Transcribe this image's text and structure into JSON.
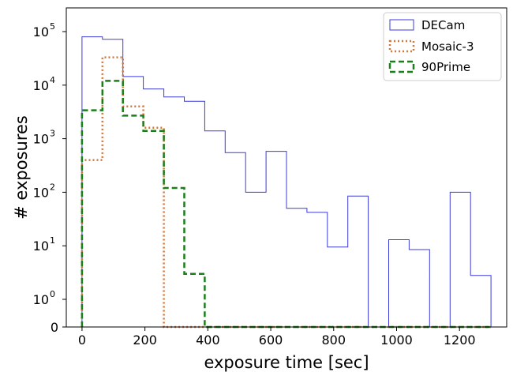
{
  "chart_data": {
    "type": "histogram",
    "title": "",
    "xlabel": "exposure time [sec]",
    "ylabel": "# exposures",
    "xlim": [
      -50,
      1350
    ],
    "yscale": "symlog",
    "x_ticks": [
      0,
      200,
      400,
      600,
      800,
      1000,
      1200
    ],
    "y_ticks": [
      {
        "value": 0,
        "label": "0"
      },
      {
        "value": 1,
        "label": "10",
        "exp": "0"
      },
      {
        "value": 10,
        "label": "10",
        "exp": "1"
      },
      {
        "value": 100,
        "label": "10",
        "exp": "2"
      },
      {
        "value": 1000,
        "label": "10",
        "exp": "3"
      },
      {
        "value": 10000,
        "label": "10",
        "exp": "4"
      },
      {
        "value": 100000,
        "label": "10",
        "exp": "5"
      }
    ],
    "legend": {
      "position": "top-right"
    },
    "grid": false,
    "series": [
      {
        "name": "DECam",
        "color": "#3b3bd9",
        "style": "solid",
        "bins": [
          [
            0,
            65,
            80000
          ],
          [
            65,
            130,
            72000
          ],
          [
            130,
            195,
            14500
          ],
          [
            195,
            260,
            8500
          ],
          [
            260,
            325,
            6000
          ],
          [
            325,
            390,
            5000
          ],
          [
            390,
            455,
            1400
          ],
          [
            455,
            520,
            550
          ],
          [
            520,
            585,
            100
          ],
          [
            585,
            650,
            580
          ],
          [
            650,
            715,
            50
          ],
          [
            715,
            780,
            42
          ],
          [
            780,
            845,
            9.5
          ],
          [
            845,
            910,
            85
          ],
          [
            910,
            975,
            0
          ],
          [
            975,
            1040,
            13
          ],
          [
            1040,
            1105,
            8.5
          ],
          [
            1105,
            1170,
            0
          ],
          [
            1170,
            1235,
            100
          ],
          [
            1235,
            1300,
            2.8
          ]
        ]
      },
      {
        "name": "Mosaic-3",
        "color": "#d2763a",
        "style": "dotted",
        "bins": [
          [
            0,
            65,
            400
          ],
          [
            65,
            130,
            33000
          ],
          [
            130,
            195,
            4000
          ],
          [
            195,
            260,
            1600
          ],
          [
            260,
            325,
            0
          ],
          [
            325,
            390,
            0
          ],
          [
            390,
            455,
            0
          ],
          [
            455,
            520,
            0
          ],
          [
            520,
            585,
            0
          ],
          [
            585,
            650,
            0
          ],
          [
            650,
            715,
            0
          ],
          [
            715,
            780,
            0
          ],
          [
            780,
            845,
            0
          ],
          [
            845,
            910,
            0
          ],
          [
            910,
            975,
            0
          ],
          [
            975,
            1040,
            0
          ],
          [
            1040,
            1105,
            0
          ],
          [
            1105,
            1170,
            0
          ],
          [
            1170,
            1235,
            0
          ],
          [
            1235,
            1300,
            0
          ]
        ]
      },
      {
        "name": "90Prime",
        "color": "#1a7f1a",
        "style": "dashed",
        "bins": [
          [
            0,
            65,
            3400
          ],
          [
            65,
            130,
            12000
          ],
          [
            130,
            195,
            2700
          ],
          [
            195,
            260,
            1400
          ],
          [
            260,
            325,
            120
          ],
          [
            325,
            390,
            3
          ],
          [
            390,
            455,
            0
          ],
          [
            455,
            520,
            0
          ],
          [
            520,
            585,
            0
          ],
          [
            585,
            650,
            0
          ],
          [
            650,
            715,
            0
          ],
          [
            715,
            780,
            0
          ],
          [
            780,
            845,
            0
          ],
          [
            845,
            910,
            0
          ],
          [
            910,
            975,
            0
          ],
          [
            975,
            1040,
            0
          ],
          [
            1040,
            1105,
            0
          ],
          [
            1105,
            1170,
            0
          ],
          [
            1170,
            1235,
            0
          ],
          [
            1235,
            1300,
            0
          ]
        ]
      }
    ]
  }
}
